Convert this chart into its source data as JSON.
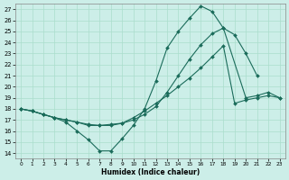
{
  "xlabel": "Humidex (Indice chaleur)",
  "bg_color": "#cceee8",
  "line_color": "#1a6b5a",
  "grid_color": "#aaddcc",
  "xlim": [
    -0.5,
    23.5
  ],
  "ylim": [
    13.5,
    27.5
  ],
  "xticks": [
    0,
    1,
    2,
    3,
    4,
    5,
    6,
    7,
    8,
    9,
    10,
    11,
    12,
    13,
    14,
    15,
    16,
    17,
    18,
    19,
    20,
    21,
    22,
    23
  ],
  "yticks": [
    14,
    15,
    16,
    17,
    18,
    19,
    20,
    21,
    22,
    23,
    24,
    25,
    26,
    27
  ],
  "line1_x": [
    0,
    1,
    2,
    3,
    4,
    5,
    6,
    7,
    8,
    9,
    10,
    11,
    12,
    13,
    14,
    15,
    16,
    17,
    18,
    19,
    20,
    21
  ],
  "line1_y": [
    18.0,
    17.8,
    17.5,
    17.2,
    16.8,
    16.0,
    15.2,
    14.2,
    14.2,
    15.3,
    16.5,
    18.0,
    20.5,
    23.5,
    25.0,
    26.2,
    27.3,
    26.8,
    25.3,
    24.7,
    23.0,
    21.0
  ],
  "line2_x": [
    0,
    1,
    2,
    3,
    4,
    5,
    6,
    7,
    8,
    9,
    10,
    11,
    12,
    13,
    14,
    15,
    16,
    17,
    18,
    20,
    21,
    22,
    23
  ],
  "line2_y": [
    18.0,
    17.8,
    17.5,
    17.2,
    17.0,
    16.8,
    16.5,
    16.5,
    16.6,
    16.7,
    17.0,
    17.5,
    18.2,
    19.5,
    21.0,
    22.5,
    23.8,
    24.8,
    25.3,
    19.0,
    19.2,
    19.5,
    19.0
  ],
  "line3_x": [
    0,
    1,
    2,
    3,
    4,
    5,
    6,
    7,
    8,
    9,
    10,
    11,
    12,
    13,
    14,
    15,
    16,
    17,
    18,
    19,
    20,
    21,
    22,
    23
  ],
  "line3_y": [
    18.0,
    17.8,
    17.5,
    17.2,
    17.0,
    16.8,
    16.6,
    16.5,
    16.5,
    16.7,
    17.2,
    17.8,
    18.5,
    19.2,
    20.0,
    20.8,
    21.7,
    22.7,
    23.7,
    18.5,
    18.8,
    19.0,
    19.2,
    19.0
  ]
}
